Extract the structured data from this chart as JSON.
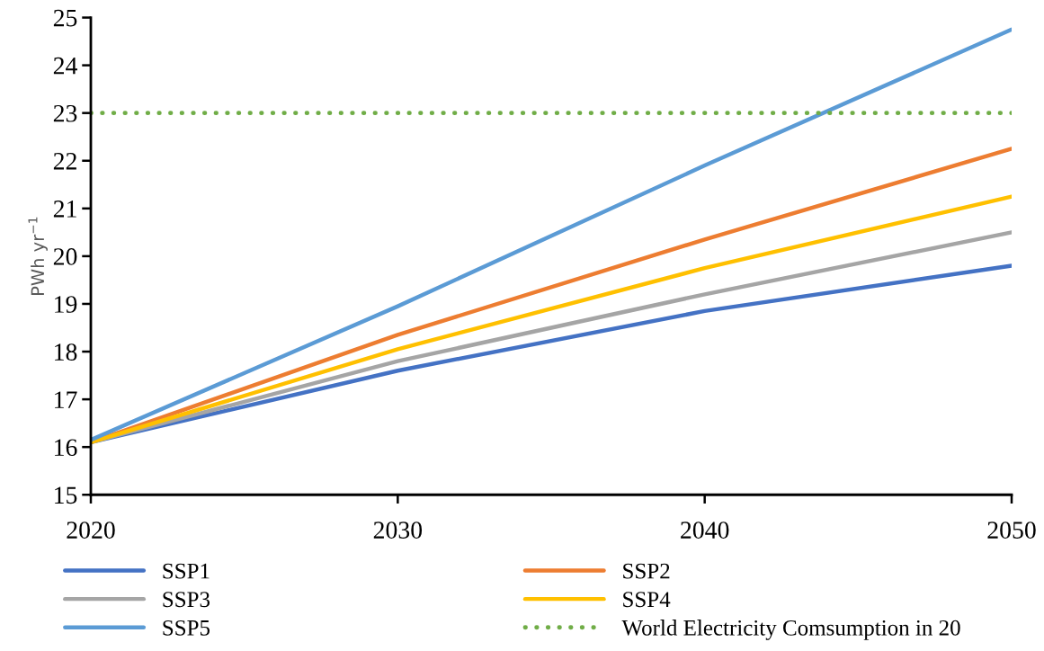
{
  "chart_data": {
    "type": "line",
    "ylabel": "PWh yr$^{−1}$",
    "x": [
      2020,
      2030,
      2040,
      2050
    ],
    "series": [
      {
        "name": "SSP1",
        "color": "#4472c4",
        "values": [
          16.1,
          17.6,
          18.85,
          19.8
        ]
      },
      {
        "name": "SSP2",
        "color": "#ed7d31",
        "values": [
          16.1,
          18.35,
          20.35,
          22.25
        ]
      },
      {
        "name": "SSP3",
        "color": "#a5a5a5",
        "values": [
          16.1,
          17.8,
          19.2,
          20.5
        ]
      },
      {
        "name": "SSP4",
        "color": "#ffc000",
        "values": [
          16.1,
          18.05,
          19.75,
          21.25
        ]
      },
      {
        "name": "SSP5",
        "color": "#5b9bd5",
        "values": [
          16.15,
          18.95,
          21.9,
          24.75
        ]
      }
    ],
    "ref_lines": [
      {
        "axis": "y",
        "value": 23,
        "label": "World Electricity Comsumption in 20",
        "color": "#70ad47",
        "line_style": "dotted"
      }
    ],
    "xlim": [
      2020,
      2050
    ],
    "xticks": [
      2020,
      2030,
      2040,
      2050
    ],
    "ylim": [
      15,
      25
    ],
    "yticks": [
      15,
      16,
      17,
      18,
      19,
      20,
      21,
      22,
      23,
      24,
      25
    ],
    "grid": false,
    "legend": "bottom",
    "marker": "none",
    "line_style": "solid"
  }
}
